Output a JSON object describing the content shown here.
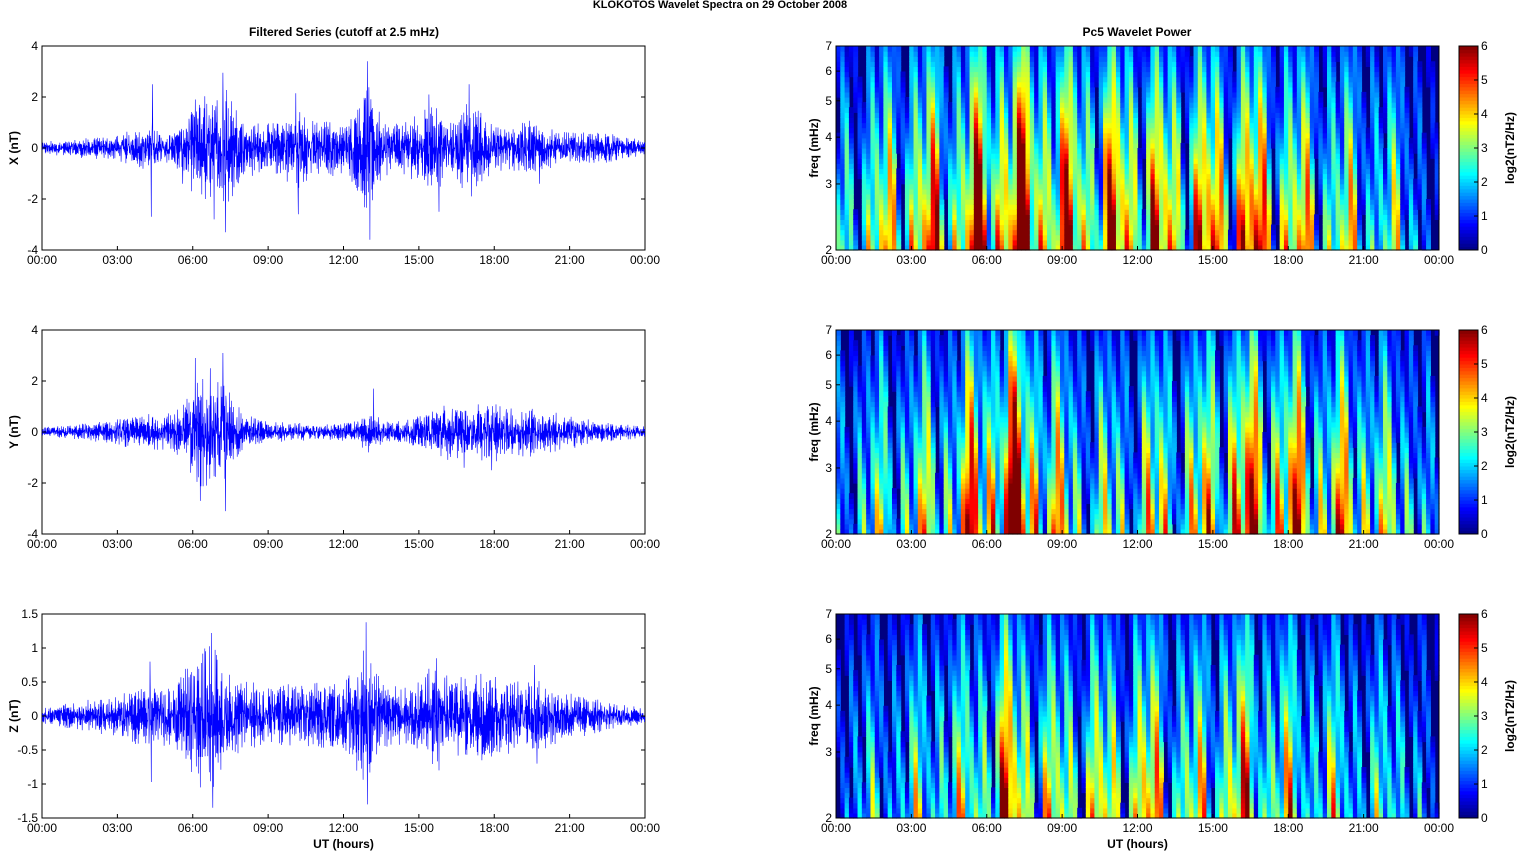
{
  "figure": {
    "title": "KLOKOTOS Wavelet Spectra on 29 October   2008",
    "left_column_title": "Filtered Series (cutoff at 2.5 mHz)",
    "right_column_title": "Pc5 Wavelet Power"
  },
  "time_ticks": [
    "00:00",
    "03:00",
    "06:00",
    "09:00",
    "12:00",
    "15:00",
    "18:00",
    "21:00",
    "00:00"
  ],
  "chart_data": [
    {
      "type": "line",
      "name": "X component filtered series",
      "ylabel": "X (nT)",
      "xlabel": "",
      "xlim": [
        0,
        24
      ],
      "ylim": [
        -4,
        4
      ],
      "yticks": [
        "4",
        "2",
        "0",
        "-2",
        "-4"
      ],
      "ytick_values": [
        4,
        2,
        0,
        -2,
        -4
      ],
      "color": "#0000ff",
      "envelope": [
        [
          0,
          0.2
        ],
        [
          2,
          0.35
        ],
        [
          3,
          0.4
        ],
        [
          4.3,
          0.8
        ],
        [
          5,
          0.45
        ],
        [
          5.7,
          1.0
        ],
        [
          6.1,
          1.6
        ],
        [
          6.6,
          1.8
        ],
        [
          7.2,
          2.2
        ],
        [
          8,
          1.0
        ],
        [
          9,
          0.8
        ],
        [
          10.2,
          1.3
        ],
        [
          11,
          0.9
        ],
        [
          12,
          0.9
        ],
        [
          12.5,
          1.3
        ],
        [
          13,
          2.4
        ],
        [
          13.6,
          0.9
        ],
        [
          14.5,
          0.9
        ],
        [
          15.5,
          1.5
        ],
        [
          16.3,
          0.9
        ],
        [
          17,
          1.6
        ],
        [
          17.6,
          1.0
        ],
        [
          18.5,
          0.7
        ],
        [
          19.6,
          0.9
        ],
        [
          20.5,
          0.55
        ],
        [
          21.5,
          0.5
        ],
        [
          22.5,
          0.5
        ],
        [
          23.3,
          0.35
        ],
        [
          24,
          0.25
        ]
      ],
      "peaks": [
        [
          4.4,
          2.5
        ],
        [
          4.35,
          -2.7
        ],
        [
          5.6,
          -1.4
        ],
        [
          6.1,
          1.9
        ],
        [
          6.5,
          -2.0
        ],
        [
          7.2,
          2.95
        ],
        [
          7.3,
          -3.3
        ],
        [
          6.85,
          -2.8
        ],
        [
          10.1,
          2.15
        ],
        [
          10.2,
          -2.6
        ],
        [
          12.95,
          3.4
        ],
        [
          13.05,
          -3.6
        ],
        [
          15.4,
          2.1
        ],
        [
          15.8,
          -2.5
        ],
        [
          17.0,
          2.5
        ],
        [
          17.1,
          -1.9
        ],
        [
          19.8,
          1.2
        ],
        [
          19.8,
          -1.4
        ]
      ]
    },
    {
      "type": "line",
      "name": "Y component filtered series",
      "ylabel": "Y (nT)",
      "xlabel": "",
      "xlim": [
        0,
        24
      ],
      "ylim": [
        -4,
        4
      ],
      "yticks": [
        "4",
        "2",
        "0",
        "-2",
        "-4"
      ],
      "ytick_values": [
        4,
        2,
        0,
        -2,
        -4
      ],
      "color": "#0000ff",
      "envelope": [
        [
          0,
          0.15
        ],
        [
          2,
          0.3
        ],
        [
          3,
          0.45
        ],
        [
          4.5,
          0.6
        ],
        [
          5.5,
          0.8
        ],
        [
          6.1,
          1.7
        ],
        [
          6.6,
          1.9
        ],
        [
          7.2,
          1.8
        ],
        [
          8,
          0.6
        ],
        [
          9,
          0.35
        ],
        [
          10,
          0.3
        ],
        [
          11,
          0.25
        ],
        [
          12,
          0.3
        ],
        [
          13,
          0.6
        ],
        [
          13.3,
          0.5
        ],
        [
          14,
          0.35
        ],
        [
          15,
          0.5
        ],
        [
          16,
          0.9
        ],
        [
          17,
          0.8
        ],
        [
          18,
          1.0
        ],
        [
          19,
          0.85
        ],
        [
          20,
          0.7
        ],
        [
          21,
          0.55
        ],
        [
          22,
          0.35
        ],
        [
          24,
          0.2
        ]
      ],
      "peaks": [
        [
          6.1,
          2.9
        ],
        [
          6.3,
          -2.7
        ],
        [
          6.7,
          2.5
        ],
        [
          6.55,
          -2.1
        ],
        [
          7.2,
          3.1
        ],
        [
          7.3,
          -3.1
        ],
        [
          13.2,
          1.7
        ],
        [
          13.0,
          -0.8
        ],
        [
          16.8,
          1.3
        ],
        [
          16.8,
          -1.4
        ],
        [
          17.9,
          -1.5
        ]
      ]
    },
    {
      "type": "line",
      "name": "Z component filtered series",
      "ylabel": "Z (nT)",
      "xlabel": "UT (hours)",
      "xlim": [
        0,
        24
      ],
      "ylim": [
        -1.5,
        1.5
      ],
      "yticks": [
        "1.5",
        "1",
        "0.5",
        "0",
        "-0.5",
        "-1",
        "-1.5"
      ],
      "ytick_values": [
        1.5,
        1,
        0.5,
        0,
        -0.5,
        -1,
        -1.5
      ],
      "color": "#0000ff",
      "envelope": [
        [
          0,
          0.1
        ],
        [
          2,
          0.2
        ],
        [
          3,
          0.25
        ],
        [
          4.3,
          0.4
        ],
        [
          5.2,
          0.35
        ],
        [
          5.8,
          0.6
        ],
        [
          6.3,
          0.8
        ],
        [
          6.8,
          0.9
        ],
        [
          7.4,
          0.5
        ],
        [
          8,
          0.45
        ],
        [
          9,
          0.35
        ],
        [
          10,
          0.4
        ],
        [
          11,
          0.4
        ],
        [
          12,
          0.4
        ],
        [
          12.9,
          0.9
        ],
        [
          13.5,
          0.4
        ],
        [
          14.5,
          0.35
        ],
        [
          15.6,
          0.65
        ],
        [
          16.5,
          0.5
        ],
        [
          17.3,
          0.55
        ],
        [
          18.5,
          0.45
        ],
        [
          19.6,
          0.45
        ],
        [
          20.5,
          0.35
        ],
        [
          21.5,
          0.25
        ],
        [
          23,
          0.15
        ],
        [
          24,
          0.1
        ]
      ],
      "peaks": [
        [
          4.3,
          0.8
        ],
        [
          4.35,
          -0.97
        ],
        [
          6.3,
          1.1
        ],
        [
          6.3,
          -1.05
        ],
        [
          6.75,
          1.22
        ],
        [
          6.8,
          -1.35
        ],
        [
          12.9,
          1.38
        ],
        [
          12.95,
          -1.3
        ],
        [
          15.7,
          0.85
        ],
        [
          15.8,
          -0.8
        ],
        [
          19.6,
          0.75
        ],
        [
          19.7,
          -0.7
        ]
      ]
    },
    {
      "type": "heatmap",
      "name": "X wavelet power",
      "ylabel": "freq (mHz)",
      "xlabel": "",
      "xlim": [
        0,
        24
      ],
      "ylim": [
        2,
        7
      ],
      "yscale": "log",
      "yticks": [
        "7",
        "6",
        "5",
        "4",
        "3",
        "2"
      ],
      "ytick_values": [
        7,
        6,
        5,
        4,
        3,
        2
      ],
      "colorbar_label": "log2(nT2/Hz)",
      "colorbar_ticks": [
        "6",
        "5",
        "4",
        "3",
        "2",
        "1",
        "0"
      ],
      "clim": [
        0,
        6
      ],
      "colormap": "jet",
      "activity": [
        [
          0,
          2.5
        ],
        [
          1,
          3.6
        ],
        [
          2,
          4.5
        ],
        [
          3,
          5.3
        ],
        [
          4,
          5.6
        ],
        [
          5,
          5.3
        ],
        [
          5.5,
          6.6
        ],
        [
          6.5,
          7.6
        ],
        [
          7.5,
          7.8
        ],
        [
          8.5,
          7.0
        ],
        [
          9,
          6.3
        ],
        [
          10,
          6.0
        ],
        [
          11,
          6.3
        ],
        [
          12,
          6.3
        ],
        [
          13,
          5.5
        ],
        [
          14,
          5.6
        ],
        [
          15,
          5.8
        ],
        [
          16,
          6.0
        ],
        [
          16.5,
          6.4
        ],
        [
          17.5,
          5.3
        ],
        [
          18.5,
          4.8
        ],
        [
          20,
          4.2
        ],
        [
          21,
          3.8
        ],
        [
          22,
          3.4
        ],
        [
          23,
          2.8
        ],
        [
          24,
          0
        ]
      ]
    },
    {
      "type": "heatmap",
      "name": "Y wavelet power",
      "ylabel": "freq (mHz)",
      "xlabel": "",
      "xlim": [
        0,
        24
      ],
      "ylim": [
        2,
        7
      ],
      "yscale": "log",
      "yticks": [
        "7",
        "6",
        "5",
        "4",
        "3",
        "2"
      ],
      "ytick_values": [
        7,
        6,
        5,
        4,
        3,
        2
      ],
      "colorbar_label": "log2(nT2/Hz)",
      "colorbar_ticks": [
        "6",
        "5",
        "4",
        "3",
        "2",
        "1",
        "0"
      ],
      "clim": [
        0,
        6
      ],
      "colormap": "jet",
      "activity": [
        [
          0,
          2.3
        ],
        [
          1,
          3.0
        ],
        [
          2,
          3.5
        ],
        [
          3,
          3.8
        ],
        [
          4,
          4.2
        ],
        [
          5,
          4.8
        ],
        [
          5.7,
          6.4
        ],
        [
          6.5,
          7.5
        ],
        [
          7.2,
          7.6
        ],
        [
          8,
          6.5
        ],
        [
          9,
          4.2
        ],
        [
          10,
          3.5
        ],
        [
          11,
          3.5
        ],
        [
          12,
          3.6
        ],
        [
          12.5,
          4.6
        ],
        [
          13.5,
          4.0
        ],
        [
          14.5,
          4.7
        ],
        [
          15.5,
          5.8
        ],
        [
          16.5,
          6.5
        ],
        [
          17.5,
          6.0
        ],
        [
          18.5,
          5.8
        ],
        [
          19.5,
          4.8
        ],
        [
          20.5,
          5.0
        ],
        [
          21.2,
          5.2
        ],
        [
          22,
          3.4
        ],
        [
          22.8,
          3.8
        ],
        [
          23.5,
          2.5
        ],
        [
          24,
          0
        ]
      ]
    },
    {
      "type": "heatmap",
      "name": "Z wavelet power",
      "ylabel": "freq (mHz)",
      "xlabel": "UT (hours)",
      "xlim": [
        0,
        24
      ],
      "ylim": [
        2,
        7
      ],
      "yscale": "log",
      "yticks": [
        "7",
        "6",
        "5",
        "4",
        "3",
        "2"
      ],
      "ytick_values": [
        7,
        6,
        5,
        4,
        3,
        2
      ],
      "colorbar_label": "log2(nT2/Hz)",
      "colorbar_ticks": [
        "6",
        "5",
        "4",
        "3",
        "2",
        "1",
        "0"
      ],
      "clim": [
        0,
        6
      ],
      "colormap": "jet",
      "activity": [
        [
          0,
          1.8
        ],
        [
          1,
          2.2
        ],
        [
          2,
          2.6
        ],
        [
          3,
          3.0
        ],
        [
          4,
          3.4
        ],
        [
          4.2,
          4.4
        ],
        [
          5,
          3.4
        ],
        [
          6,
          5.0
        ],
        [
          6.5,
          5.8
        ],
        [
          7.2,
          5.5
        ],
        [
          8,
          5.0
        ],
        [
          8.5,
          4.0
        ],
        [
          9.5,
          4.2
        ],
        [
          10.5,
          4.4
        ],
        [
          11.5,
          4.0
        ],
        [
          12.5,
          5.2
        ],
        [
          13.5,
          3.8
        ],
        [
          14.5,
          4.0
        ],
        [
          15.5,
          5.0
        ],
        [
          16.5,
          5.2
        ],
        [
          17.5,
          4.4
        ],
        [
          18.5,
          3.8
        ],
        [
          19.5,
          3.6
        ],
        [
          20.5,
          3.0
        ],
        [
          21.5,
          2.6
        ],
        [
          22.5,
          3.4
        ],
        [
          23,
          2.2
        ],
        [
          24,
          0
        ]
      ]
    }
  ]
}
